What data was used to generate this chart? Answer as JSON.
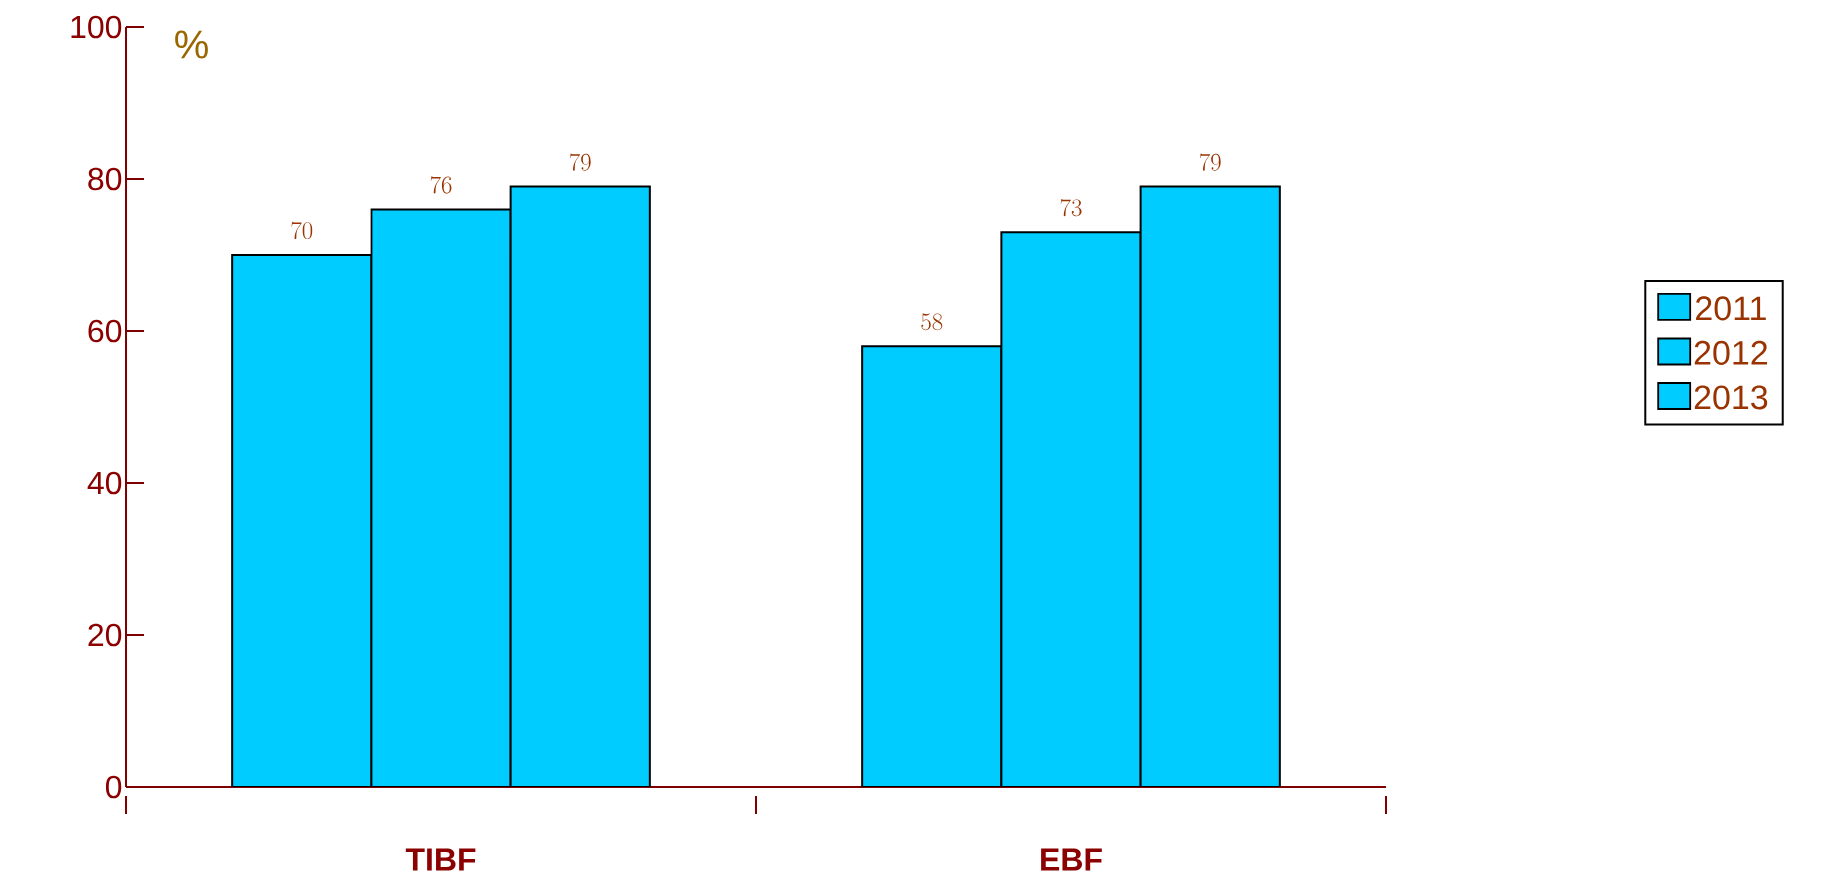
{
  "chart_data": {
    "type": "bar",
    "ylabel": "%",
    "categories": [
      "TIBF",
      "EBF"
    ],
    "series": [
      {
        "name": "2011",
        "color": "#00ccff",
        "values": [
          70,
          58
        ]
      },
      {
        "name": "2012",
        "color": "#00ccff",
        "values": [
          76,
          73
        ]
      },
      {
        "name": "2013",
        "color": "#00ccff",
        "values": [
          79,
          79
        ]
      }
    ],
    "ylim": [
      0,
      100
    ],
    "yticks": [
      0,
      20,
      40,
      60,
      80,
      100
    ],
    "grid": false,
    "legend": "right",
    "data_labels": true
  }
}
